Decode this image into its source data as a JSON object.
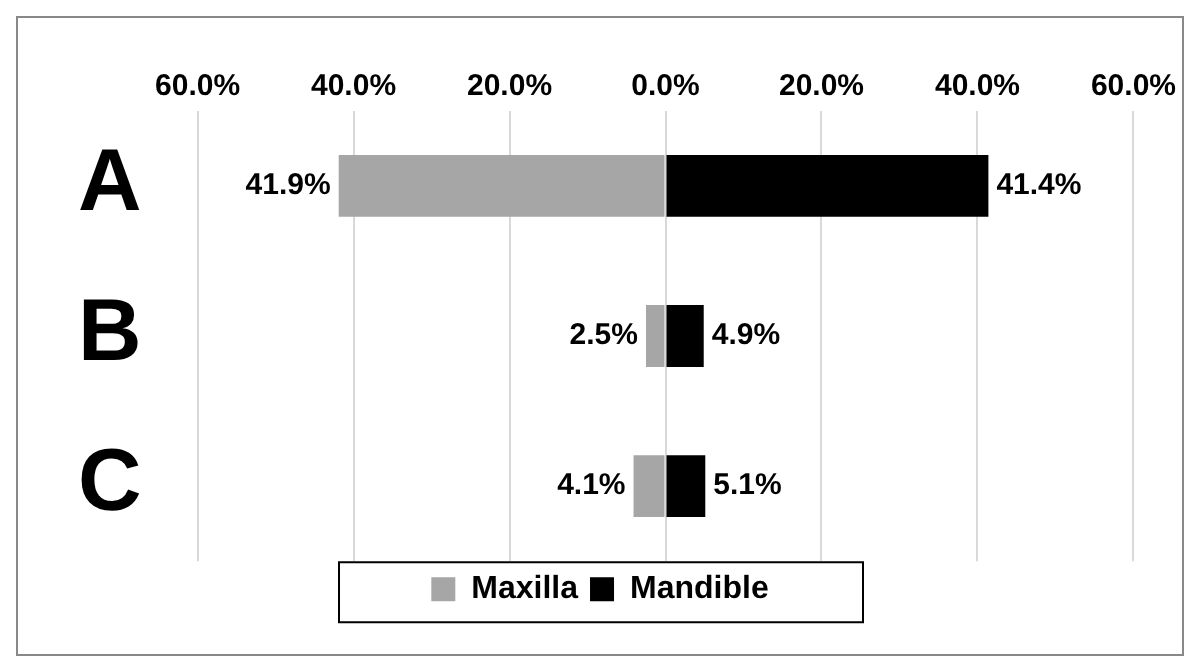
{
  "chart_data": {
    "type": "bar",
    "orientation": "horizontal",
    "categories": [
      "A",
      "B",
      "C"
    ],
    "series": [
      {
        "name": "Maxilla",
        "color": "#a6a6a6",
        "base": [
          -41.9,
          -2.5,
          -4.1
        ],
        "values": [
          41.9,
          2.5,
          4.1
        ],
        "value_labels": [
          "41.9%",
          "2.5%",
          "4.1%"
        ]
      },
      {
        "name": "Mandible",
        "color": "#000000",
        "values": [
          41.4,
          4.9,
          5.1
        ],
        "value_labels": [
          "41.4%",
          "4.9%",
          "5.1%"
        ]
      }
    ],
    "xlim": [
      -60,
      60
    ],
    "xticks": [
      {
        "value": -60,
        "label": "60.0%"
      },
      {
        "value": -40,
        "label": "40.0%"
      },
      {
        "value": -20,
        "label": "20.0%"
      },
      {
        "value": 0,
        "label": "0.0%"
      },
      {
        "value": 20,
        "label": "20.0%"
      },
      {
        "value": 40,
        "label": "40.0%"
      },
      {
        "value": 60,
        "label": "60.0%"
      }
    ],
    "grid": "x",
    "legend": "bottom"
  }
}
